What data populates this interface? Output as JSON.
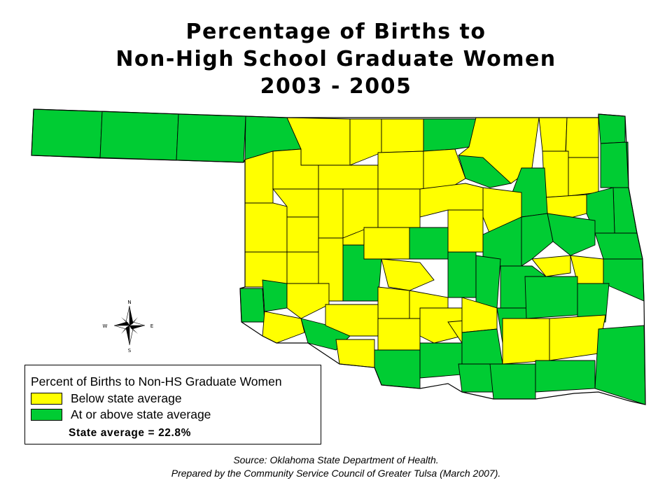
{
  "title": {
    "line1": "Percentage of Births to",
    "line2": "Non-High School Graduate Women",
    "line3": "2003 - 2005"
  },
  "colors": {
    "below": "#ffff00",
    "above": "#00cc33",
    "border": "#000000",
    "background": "#ffffff"
  },
  "compass": {
    "n": "N",
    "s": "S",
    "e": "E",
    "w": "W"
  },
  "legend": {
    "title": "Percent of Births to Non-HS Graduate Women",
    "items": [
      {
        "label": "Below state average",
        "color": "#ffff00"
      },
      {
        "label": "At or above state average",
        "color": "#00cc33"
      }
    ],
    "average": "State average = 22.8%"
  },
  "source": {
    "line1": "Source:  Oklahoma State Department of Health.",
    "line2": "Prepared by the Community Service Council of Greater Tulsa (March 2007)."
  }
}
